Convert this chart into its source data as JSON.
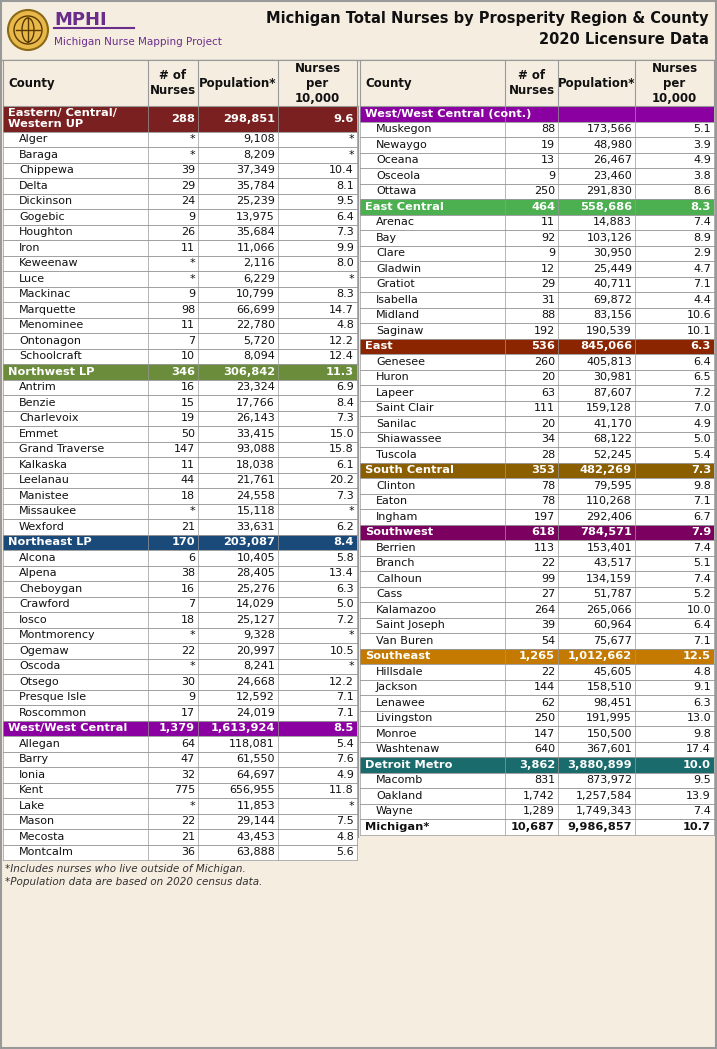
{
  "title_line1": "Michigan Total Nurses by Prosperity Region & County",
  "title_line2": "2020 Licensure Data",
  "logo_text_top": "MPHI",
  "logo_text_bottom": "Michigan Nurse Mapping Project",
  "footnotes": [
    "*Includes nurses who live outside of Michigan.",
    "*Population data are based on 2020 census data."
  ],
  "background_color": "#f5ede0",
  "border_color": "#999999",
  "left_data": [
    {
      "type": "region",
      "name": "Eastern/ Central/\nWestern UP",
      "nurses": "288",
      "pop": "298,851",
      "per10k": "9.6",
      "color": "#7b2020"
    },
    {
      "type": "county",
      "name": "Alger",
      "nurses": "*",
      "pop": "9,108",
      "per10k": "*"
    },
    {
      "type": "county",
      "name": "Baraga",
      "nurses": "*",
      "pop": "8,209",
      "per10k": "*"
    },
    {
      "type": "county",
      "name": "Chippewa",
      "nurses": "39",
      "pop": "37,349",
      "per10k": "10.4"
    },
    {
      "type": "county",
      "name": "Delta",
      "nurses": "29",
      "pop": "35,784",
      "per10k": "8.1"
    },
    {
      "type": "county",
      "name": "Dickinson",
      "nurses": "24",
      "pop": "25,239",
      "per10k": "9.5"
    },
    {
      "type": "county",
      "name": "Gogebic",
      "nurses": "9",
      "pop": "13,975",
      "per10k": "6.4"
    },
    {
      "type": "county",
      "name": "Houghton",
      "nurses": "26",
      "pop": "35,684",
      "per10k": "7.3"
    },
    {
      "type": "county",
      "name": "Iron",
      "nurses": "11",
      "pop": "11,066",
      "per10k": "9.9"
    },
    {
      "type": "county",
      "name": "Keweenaw",
      "nurses": "*",
      "pop": "2,116",
      "per10k": "8.0"
    },
    {
      "type": "county",
      "name": "Luce",
      "nurses": "*",
      "pop": "6,229",
      "per10k": "*"
    },
    {
      "type": "county",
      "name": "Mackinac",
      "nurses": "9",
      "pop": "10,799",
      "per10k": "8.3"
    },
    {
      "type": "county",
      "name": "Marquette",
      "nurses": "98",
      "pop": "66,699",
      "per10k": "14.7"
    },
    {
      "type": "county",
      "name": "Menominee",
      "nurses": "11",
      "pop": "22,780",
      "per10k": "4.8"
    },
    {
      "type": "county",
      "name": "Ontonagon",
      "nurses": "7",
      "pop": "5,720",
      "per10k": "12.2"
    },
    {
      "type": "county",
      "name": "Schoolcraft",
      "nurses": "10",
      "pop": "8,094",
      "per10k": "12.4"
    },
    {
      "type": "region",
      "name": "Northwest LP",
      "nurses": "346",
      "pop": "306,842",
      "per10k": "11.3",
      "color": "#6b8c3a"
    },
    {
      "type": "county",
      "name": "Antrim",
      "nurses": "16",
      "pop": "23,324",
      "per10k": "6.9"
    },
    {
      "type": "county",
      "name": "Benzie",
      "nurses": "15",
      "pop": "17,766",
      "per10k": "8.4"
    },
    {
      "type": "county",
      "name": "Charlevoix",
      "nurses": "19",
      "pop": "26,143",
      "per10k": "7.3"
    },
    {
      "type": "county",
      "name": "Emmet",
      "nurses": "50",
      "pop": "33,415",
      "per10k": "15.0"
    },
    {
      "type": "county",
      "name": "Grand Traverse",
      "nurses": "147",
      "pop": "93,088",
      "per10k": "15.8"
    },
    {
      "type": "county",
      "name": "Kalkaska",
      "nurses": "11",
      "pop": "18,038",
      "per10k": "6.1"
    },
    {
      "type": "county",
      "name": "Leelanau",
      "nurses": "44",
      "pop": "21,761",
      "per10k": "20.2"
    },
    {
      "type": "county",
      "name": "Manistee",
      "nurses": "18",
      "pop": "24,558",
      "per10k": "7.3"
    },
    {
      "type": "county",
      "name": "Missaukee",
      "nurses": "*",
      "pop": "15,118",
      "per10k": "*"
    },
    {
      "type": "county",
      "name": "Wexford",
      "nurses": "21",
      "pop": "33,631",
      "per10k": "6.2"
    },
    {
      "type": "region",
      "name": "Northeast LP",
      "nurses": "170",
      "pop": "203,087",
      "per10k": "8.4",
      "color": "#1a4a7a"
    },
    {
      "type": "county",
      "name": "Alcona",
      "nurses": "6",
      "pop": "10,405",
      "per10k": "5.8"
    },
    {
      "type": "county",
      "name": "Alpena",
      "nurses": "38",
      "pop": "28,405",
      "per10k": "13.4"
    },
    {
      "type": "county",
      "name": "Cheboygan",
      "nurses": "16",
      "pop": "25,276",
      "per10k": "6.3"
    },
    {
      "type": "county",
      "name": "Crawford",
      "nurses": "7",
      "pop": "14,029",
      "per10k": "5.0"
    },
    {
      "type": "county",
      "name": "Iosco",
      "nurses": "18",
      "pop": "25,127",
      "per10k": "7.2"
    },
    {
      "type": "county",
      "name": "Montmorency",
      "nurses": "*",
      "pop": "9,328",
      "per10k": "*"
    },
    {
      "type": "county",
      "name": "Ogemaw",
      "nurses": "22",
      "pop": "20,997",
      "per10k": "10.5"
    },
    {
      "type": "county",
      "name": "Oscoda",
      "nurses": "*",
      "pop": "8,241",
      "per10k": "*"
    },
    {
      "type": "county",
      "name": "Otsego",
      "nurses": "30",
      "pop": "24,668",
      "per10k": "12.2"
    },
    {
      "type": "county",
      "name": "Presque Isle",
      "nurses": "9",
      "pop": "12,592",
      "per10k": "7.1"
    },
    {
      "type": "county",
      "name": "Roscommon",
      "nurses": "17",
      "pop": "24,019",
      "per10k": "7.1"
    },
    {
      "type": "region",
      "name": "West/West Central",
      "nurses": "1,379",
      "pop": "1,613,924",
      "per10k": "8.5",
      "color": "#8b00a0"
    },
    {
      "type": "county",
      "name": "Allegan",
      "nurses": "64",
      "pop": "118,081",
      "per10k": "5.4"
    },
    {
      "type": "county",
      "name": "Barry",
      "nurses": "47",
      "pop": "61,550",
      "per10k": "7.6"
    },
    {
      "type": "county",
      "name": "Ionia",
      "nurses": "32",
      "pop": "64,697",
      "per10k": "4.9"
    },
    {
      "type": "county",
      "name": "Kent",
      "nurses": "775",
      "pop": "656,955",
      "per10k": "11.8"
    },
    {
      "type": "county",
      "name": "Lake",
      "nurses": "*",
      "pop": "11,853",
      "per10k": "*"
    },
    {
      "type": "county",
      "name": "Mason",
      "nurses": "22",
      "pop": "29,144",
      "per10k": "7.5"
    },
    {
      "type": "county",
      "name": "Mecosta",
      "nurses": "21",
      "pop": "43,453",
      "per10k": "4.8"
    },
    {
      "type": "county",
      "name": "Montcalm",
      "nurses": "36",
      "pop": "63,888",
      "per10k": "5.6"
    }
  ],
  "right_data": [
    {
      "type": "region_cont",
      "name": "West/West Central (cont.)",
      "nurses": "",
      "pop": "",
      "per10k": "",
      "color": "#8b00a0"
    },
    {
      "type": "county",
      "name": "Muskegon",
      "nurses": "88",
      "pop": "173,566",
      "per10k": "5.1"
    },
    {
      "type": "county",
      "name": "Newaygo",
      "nurses": "19",
      "pop": "48,980",
      "per10k": "3.9"
    },
    {
      "type": "county",
      "name": "Oceana",
      "nurses": "13",
      "pop": "26,467",
      "per10k": "4.9"
    },
    {
      "type": "county",
      "name": "Osceola",
      "nurses": "9",
      "pop": "23,460",
      "per10k": "3.8"
    },
    {
      "type": "county",
      "name": "Ottawa",
      "nurses": "250",
      "pop": "291,830",
      "per10k": "8.6"
    },
    {
      "type": "region",
      "name": "East Central",
      "nurses": "464",
      "pop": "558,686",
      "per10k": "8.3",
      "color": "#4caf50"
    },
    {
      "type": "county",
      "name": "Arenac",
      "nurses": "11",
      "pop": "14,883",
      "per10k": "7.4"
    },
    {
      "type": "county",
      "name": "Bay",
      "nurses": "92",
      "pop": "103,126",
      "per10k": "8.9"
    },
    {
      "type": "county",
      "name": "Clare",
      "nurses": "9",
      "pop": "30,950",
      "per10k": "2.9"
    },
    {
      "type": "county",
      "name": "Gladwin",
      "nurses": "12",
      "pop": "25,449",
      "per10k": "4.7"
    },
    {
      "type": "county",
      "name": "Gratiot",
      "nurses": "29",
      "pop": "40,711",
      "per10k": "7.1"
    },
    {
      "type": "county",
      "name": "Isabella",
      "nurses": "31",
      "pop": "69,872",
      "per10k": "4.4"
    },
    {
      "type": "county",
      "name": "Midland",
      "nurses": "88",
      "pop": "83,156",
      "per10k": "10.6"
    },
    {
      "type": "county",
      "name": "Saginaw",
      "nurses": "192",
      "pop": "190,539",
      "per10k": "10.1"
    },
    {
      "type": "region",
      "name": "East",
      "nurses": "536",
      "pop": "845,066",
      "per10k": "6.3",
      "color": "#8b2500"
    },
    {
      "type": "county",
      "name": "Genesee",
      "nurses": "260",
      "pop": "405,813",
      "per10k": "6.4"
    },
    {
      "type": "county",
      "name": "Huron",
      "nurses": "20",
      "pop": "30,981",
      "per10k": "6.5"
    },
    {
      "type": "county",
      "name": "Lapeer",
      "nurses": "63",
      "pop": "87,607",
      "per10k": "7.2"
    },
    {
      "type": "county",
      "name": "Saint Clair",
      "nurses": "111",
      "pop": "159,128",
      "per10k": "7.0"
    },
    {
      "type": "county",
      "name": "Sanilac",
      "nurses": "20",
      "pop": "41,170",
      "per10k": "4.9"
    },
    {
      "type": "county",
      "name": "Shiawassee",
      "nurses": "34",
      "pop": "68,122",
      "per10k": "5.0"
    },
    {
      "type": "county",
      "name": "Tuscola",
      "nurses": "28",
      "pop": "52,245",
      "per10k": "5.4"
    },
    {
      "type": "region",
      "name": "South Central",
      "nurses": "353",
      "pop": "482,269",
      "per10k": "7.3",
      "color": "#8b5e00"
    },
    {
      "type": "county",
      "name": "Clinton",
      "nurses": "78",
      "pop": "79,595",
      "per10k": "9.8"
    },
    {
      "type": "county",
      "name": "Eaton",
      "nurses": "78",
      "pop": "110,268",
      "per10k": "7.1"
    },
    {
      "type": "county",
      "name": "Ingham",
      "nurses": "197",
      "pop": "292,406",
      "per10k": "6.7"
    },
    {
      "type": "region",
      "name": "Southwest",
      "nurses": "618",
      "pop": "784,571",
      "per10k": "7.9",
      "color": "#7b0060"
    },
    {
      "type": "county",
      "name": "Berrien",
      "nurses": "113",
      "pop": "153,401",
      "per10k": "7.4"
    },
    {
      "type": "county",
      "name": "Branch",
      "nurses": "22",
      "pop": "43,517",
      "per10k": "5.1"
    },
    {
      "type": "county",
      "name": "Calhoun",
      "nurses": "99",
      "pop": "134,159",
      "per10k": "7.4"
    },
    {
      "type": "county",
      "name": "Cass",
      "nurses": "27",
      "pop": "51,787",
      "per10k": "5.2"
    },
    {
      "type": "county",
      "name": "Kalamazoo",
      "nurses": "264",
      "pop": "265,066",
      "per10k": "10.0"
    },
    {
      "type": "county",
      "name": "Saint Joseph",
      "nurses": "39",
      "pop": "60,964",
      "per10k": "6.4"
    },
    {
      "type": "county",
      "name": "Van Buren",
      "nurses": "54",
      "pop": "75,677",
      "per10k": "7.1"
    },
    {
      "type": "region",
      "name": "Southeast",
      "nurses": "1,265",
      "pop": "1,012,662",
      "per10k": "12.5",
      "color": "#c47a00"
    },
    {
      "type": "county",
      "name": "Hillsdale",
      "nurses": "22",
      "pop": "45,605",
      "per10k": "4.8"
    },
    {
      "type": "county",
      "name": "Jackson",
      "nurses": "144",
      "pop": "158,510",
      "per10k": "9.1"
    },
    {
      "type": "county",
      "name": "Lenawee",
      "nurses": "62",
      "pop": "98,451",
      "per10k": "6.3"
    },
    {
      "type": "county",
      "name": "Livingston",
      "nurses": "250",
      "pop": "191,995",
      "per10k": "13.0"
    },
    {
      "type": "county",
      "name": "Monroe",
      "nurses": "147",
      "pop": "150,500",
      "per10k": "9.8"
    },
    {
      "type": "county",
      "name": "Washtenaw",
      "nurses": "640",
      "pop": "367,601",
      "per10k": "17.4"
    },
    {
      "type": "region",
      "name": "Detroit Metro",
      "nurses": "3,862",
      "pop": "3,880,899",
      "per10k": "10.0",
      "color": "#1a6b6b"
    },
    {
      "type": "county",
      "name": "Macomb",
      "nurses": "831",
      "pop": "873,972",
      "per10k": "9.5"
    },
    {
      "type": "county",
      "name": "Oakland",
      "nurses": "1,742",
      "pop": "1,257,584",
      "per10k": "13.9"
    },
    {
      "type": "county",
      "name": "Wayne",
      "nurses": "1,289",
      "pop": "1,749,343",
      "per10k": "7.4"
    },
    {
      "type": "michigan",
      "name": "Michigan*",
      "nurses": "10,687",
      "pop": "9,986,857",
      "per10k": "10.7"
    }
  ]
}
